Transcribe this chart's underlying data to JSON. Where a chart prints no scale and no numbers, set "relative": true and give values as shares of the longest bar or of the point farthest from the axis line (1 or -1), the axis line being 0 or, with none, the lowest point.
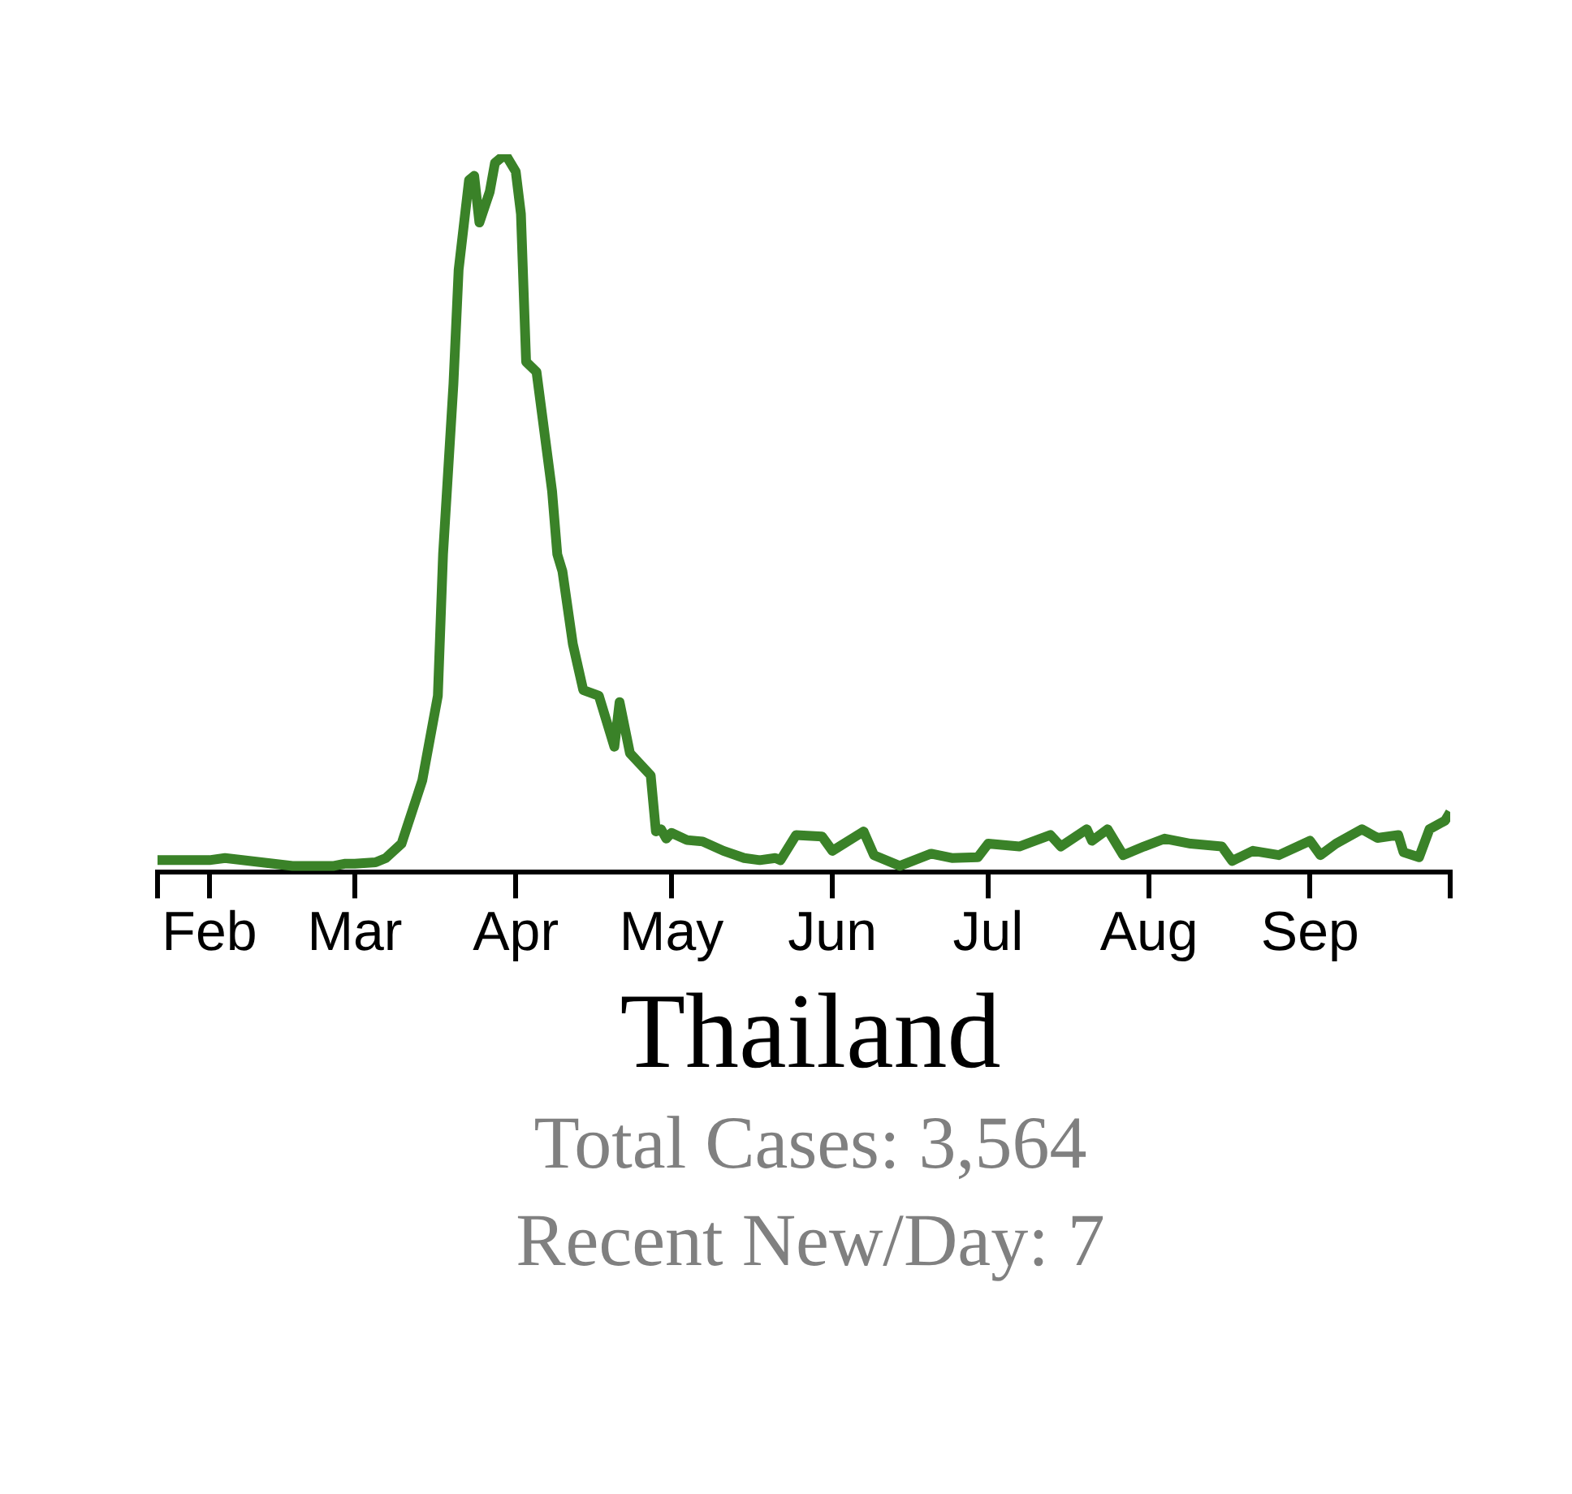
{
  "chart_data": {
    "type": "line",
    "title": "Thailand",
    "subtitle": "Total Cases: 3,564",
    "annotations": [
      "Recent New/Day: 7"
    ],
    "relative": true,
    "color": "#3a8228",
    "marker": "none",
    "line_style": "solid",
    "x": [
      "--01-22",
      "--02-01",
      "--02-04",
      "--02-11",
      "--02-17",
      "--02-25",
      "--02-27",
      "--03-01",
      "--03-05",
      "--03-07",
      "--03-10",
      "--03-14",
      "--03-17",
      "--03-18",
      "--03-20",
      "--03-21",
      "--03-23",
      "--03-24",
      "--03-25",
      "--03-27",
      "--03-28",
      "--03-30",
      "--04-01",
      "--04-02",
      "--04-03",
      "--04-05",
      "--04-08",
      "--04-09",
      "--04-10",
      "--04-12",
      "--04-14",
      "--04-17",
      "--04-20",
      "--04-21",
      "--04-23",
      "--04-27",
      "--04-28",
      "--04-29",
      "--04-30",
      "--05-01",
      "--05-04",
      "--05-07",
      "--05-11",
      "--05-15",
      "--05-18",
      "--05-21",
      "--05-22",
      "--05-25",
      "--05-30",
      "--06-01",
      "--06-07",
      "--06-09",
      "--06-14",
      "--06-20",
      "--06-24",
      "--06-29",
      "--07-01",
      "--07-07",
      "--07-13",
      "--07-15",
      "--07-20",
      "--07-21",
      "--07-24",
      "--07-27",
      "--07-31",
      "--08-04",
      "--08-09",
      "--08-15",
      "--08-17",
      "--08-21",
      "--08-26",
      "--09-01",
      "--09-03",
      "--09-06",
      "--09-11",
      "--09-14",
      "--09-18",
      "--09-19",
      "--09-22",
      "--09-24",
      "--09-27",
      "--09-28"
    ],
    "values": [
      0.017,
      0.017,
      0.02,
      0.014,
      0.009,
      0.009,
      0.012,
      0.012,
      0.014,
      0.02,
      0.04,
      0.128,
      0.246,
      0.443,
      0.68,
      0.839,
      0.964,
      0.97,
      0.905,
      0.948,
      0.988,
      1,
      0.976,
      0.917,
      0.711,
      0.697,
      0.531,
      0.443,
      0.419,
      0.318,
      0.254,
      0.246,
      0.175,
      0.237,
      0.166,
      0.135,
      0.057,
      0.06,
      0.047,
      0.055,
      0.045,
      0.043,
      0.03,
      0.02,
      0.017,
      0.02,
      0.017,
      0.052,
      0.05,
      0.03,
      0.057,
      0.024,
      0.009,
      0.026,
      0.02,
      0.021,
      0.04,
      0.036,
      0.052,
      0.036,
      0.06,
      0.044,
      0.06,
      0.024,
      0.036,
      0.047,
      0.04,
      0.036,
      0.016,
      0.03,
      0.024,
      0.044,
      0.024,
      0.04,
      0.06,
      0.048,
      0.052,
      0.028,
      0.021,
      0.06,
      0.072,
      0.084
    ],
    "xlim": [
      "--01-22",
      "--09-28"
    ],
    "xticks": [
      {
        "value": "--01-22",
        "label": null
      },
      {
        "value": "--02-01",
        "label": "Feb"
      },
      {
        "value": "--03-01",
        "label": "Mar"
      },
      {
        "value": "--04-01",
        "label": "Apr"
      },
      {
        "value": "--05-01",
        "label": "May"
      },
      {
        "value": "--06-01",
        "label": "Jun"
      },
      {
        "value": "--07-01",
        "label": "Jul"
      },
      {
        "value": "--08-01",
        "label": "Aug"
      },
      {
        "value": "--09-01",
        "label": "Sep"
      },
      {
        "value": "--09-28",
        "label": null
      }
    ]
  }
}
